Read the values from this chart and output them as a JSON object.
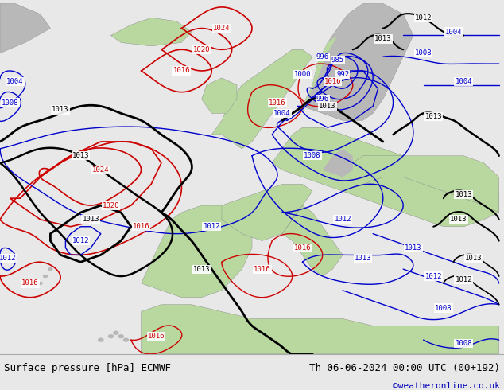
{
  "title_left": "Surface pressure [hPa] ECMWF",
  "title_right": "Th 06-06-2024 00:00 UTC (00+192)",
  "copyright": "©weatheronline.co.uk",
  "fig_width": 6.34,
  "fig_height": 4.9,
  "dpi": 100,
  "ocean_color": "#d0d8e0",
  "land_green": "#b8d8a0",
  "land_gray": "#b8b8b8",
  "footer_bg": "#e8e8e8",
  "footer_text_color": "#000000",
  "copyright_color": "#0000bb",
  "blue": "#0000cc",
  "red": "#cc0000",
  "black": "#000000",
  "font_size_footer": 9,
  "font_size_copyright": 8,
  "font_size_label": 6.5
}
